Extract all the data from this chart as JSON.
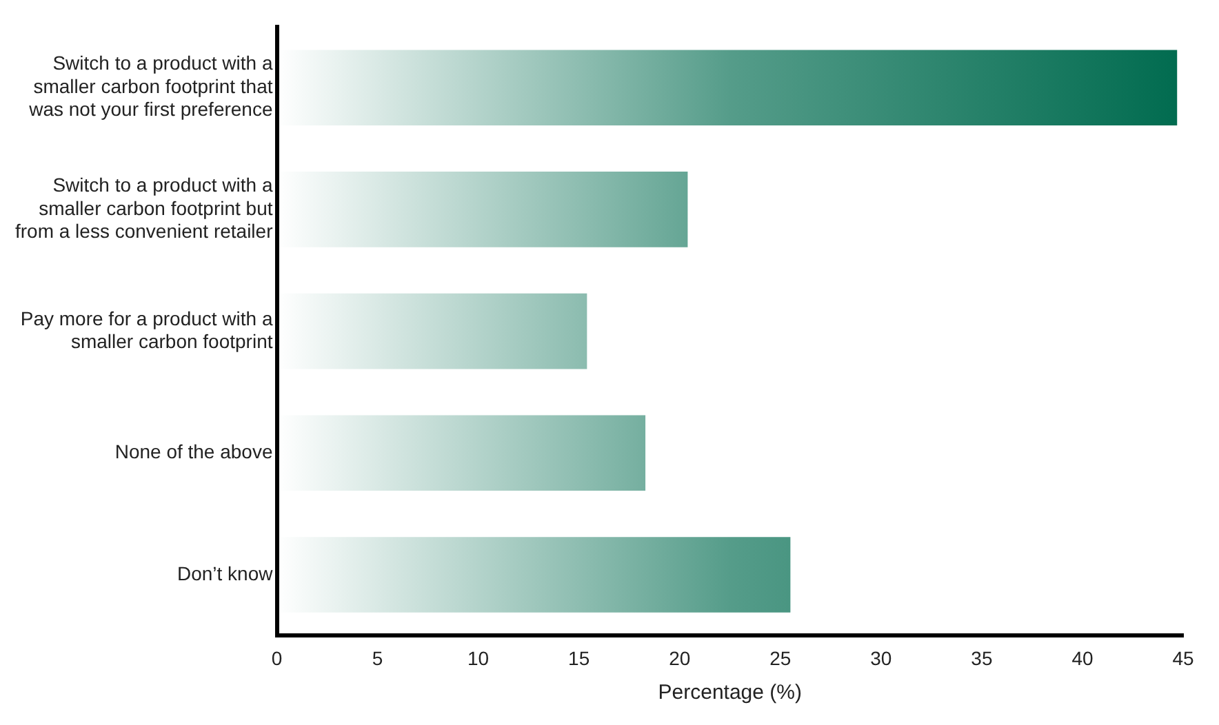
{
  "chart_data": {
    "type": "bar",
    "orientation": "horizontal",
    "xlabel": "Percentage (%)",
    "categories": [
      "Switch to a product with a smaller carbon footprint that was not your first preference",
      "Switch to a product with a smaller carbon footprint but from a less convenient retailer",
      "Pay more for a product with a smaller carbon footprint",
      "None of the above",
      "Don’t know"
    ],
    "values": [
      44.7,
      20.4,
      15.4,
      18.3,
      25.5
    ],
    "color": "#006b4f",
    "xlim": [
      0,
      45
    ],
    "xticks": [
      0,
      5,
      10,
      15,
      20,
      25,
      30,
      35,
      40,
      45
    ],
    "grid": false,
    "legend": false
  }
}
